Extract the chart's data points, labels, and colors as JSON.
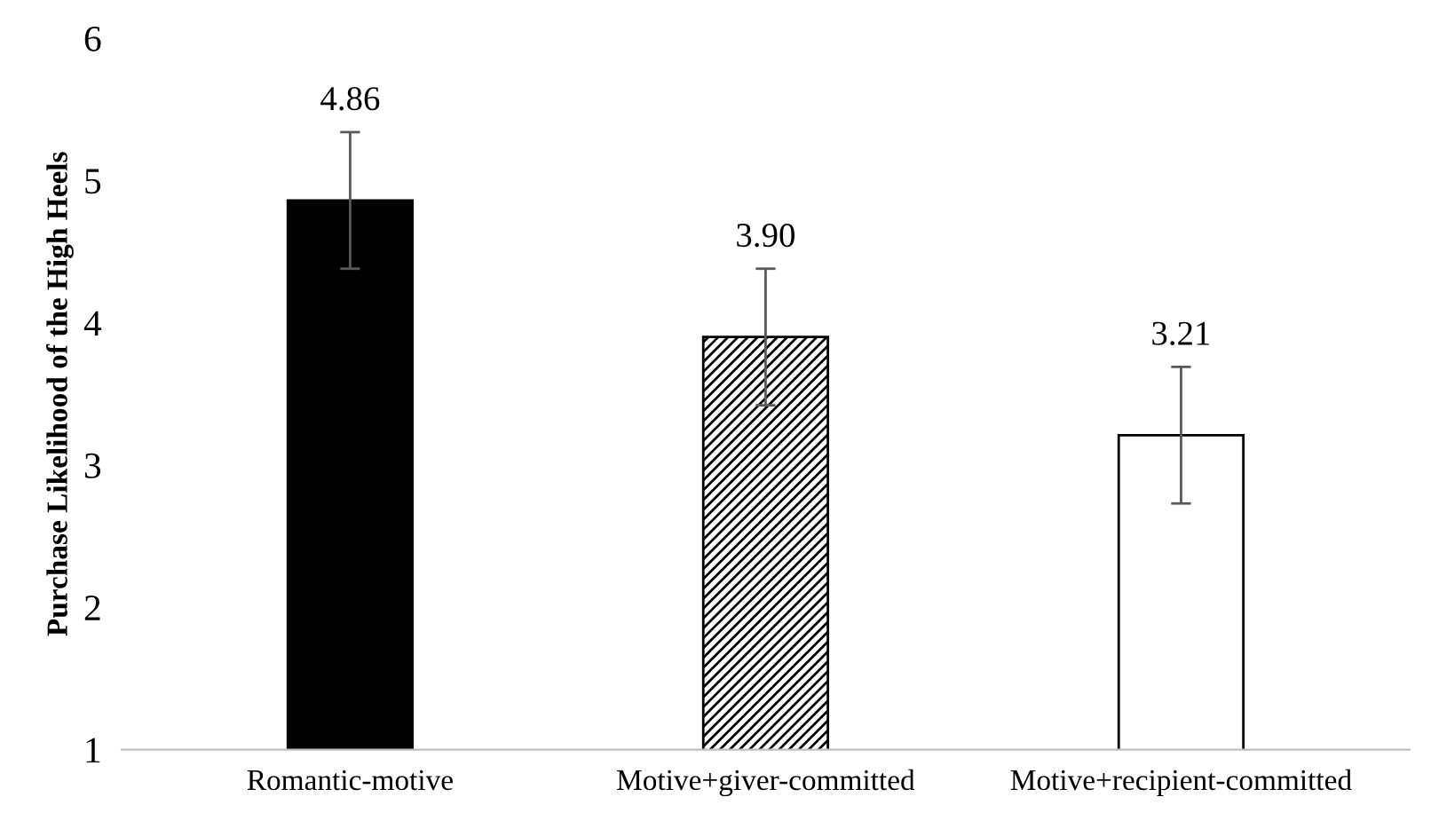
{
  "chart_data": {
    "type": "bar",
    "ylabel": "Purchase Likelihood of the High Heels",
    "categories": [
      "Romantic-motive",
      "Motive+giver-committed",
      "Motive+recipient-committed"
    ],
    "values": [
      4.86,
      3.9,
      3.21
    ],
    "value_labels": [
      "4.86",
      "3.90",
      "3.21"
    ],
    "errors": [
      0.48,
      0.48,
      0.48
    ],
    "colors": [
      "#000000",
      "#000000",
      "#ffffff"
    ],
    "ylim": [
      1,
      6
    ],
    "yticks": [
      1,
      2,
      3,
      4,
      5,
      6
    ],
    "grid": false,
    "legend": false
  }
}
